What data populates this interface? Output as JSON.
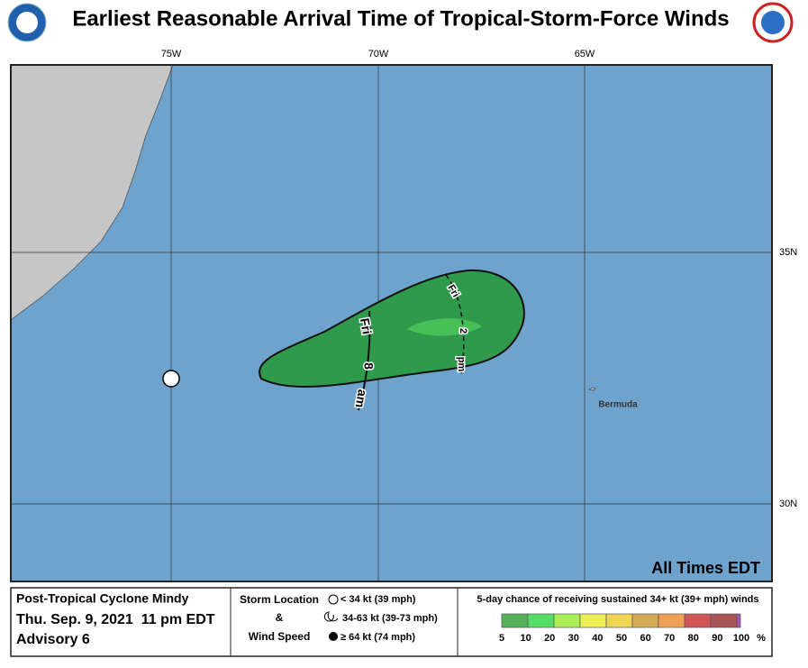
{
  "header": {
    "title": "Earliest Reasonable Arrival Time of Tropical-Storm-Force Winds"
  },
  "map": {
    "lon_labels": [
      "75W",
      "70W",
      "65W"
    ],
    "lat_labels": [
      "35N",
      "30N"
    ],
    "place_label": "Bermuda",
    "contour_labels": [
      [
        "Fri",
        "8",
        "am"
      ],
      [
        "Fri",
        "2",
        "pm"
      ]
    ],
    "time_note": "All Times EDT"
  },
  "footer": {
    "storm": "Post-Tropical Cyclone Mindy",
    "date": "Thu. Sep. 9, 2021  11 pm EDT",
    "advisory": "Advisory 6",
    "storm_legend": {
      "title": [
        "Storm Location",
        "&",
        "Wind Speed"
      ],
      "items": [
        "< 34 kt (39 mph)",
        "34-63 kt (39-73 mph)",
        "≥ 64 kt (74 mph)"
      ]
    },
    "probability_legend": {
      "title": "5-day chance of receiving sustained 34+ kt (39+ mph) winds",
      "scale_labels": [
        "5",
        "10",
        "20",
        "30",
        "40",
        "50",
        "60",
        "70",
        "80",
        "90",
        "100",
        "%"
      ]
    }
  }
}
